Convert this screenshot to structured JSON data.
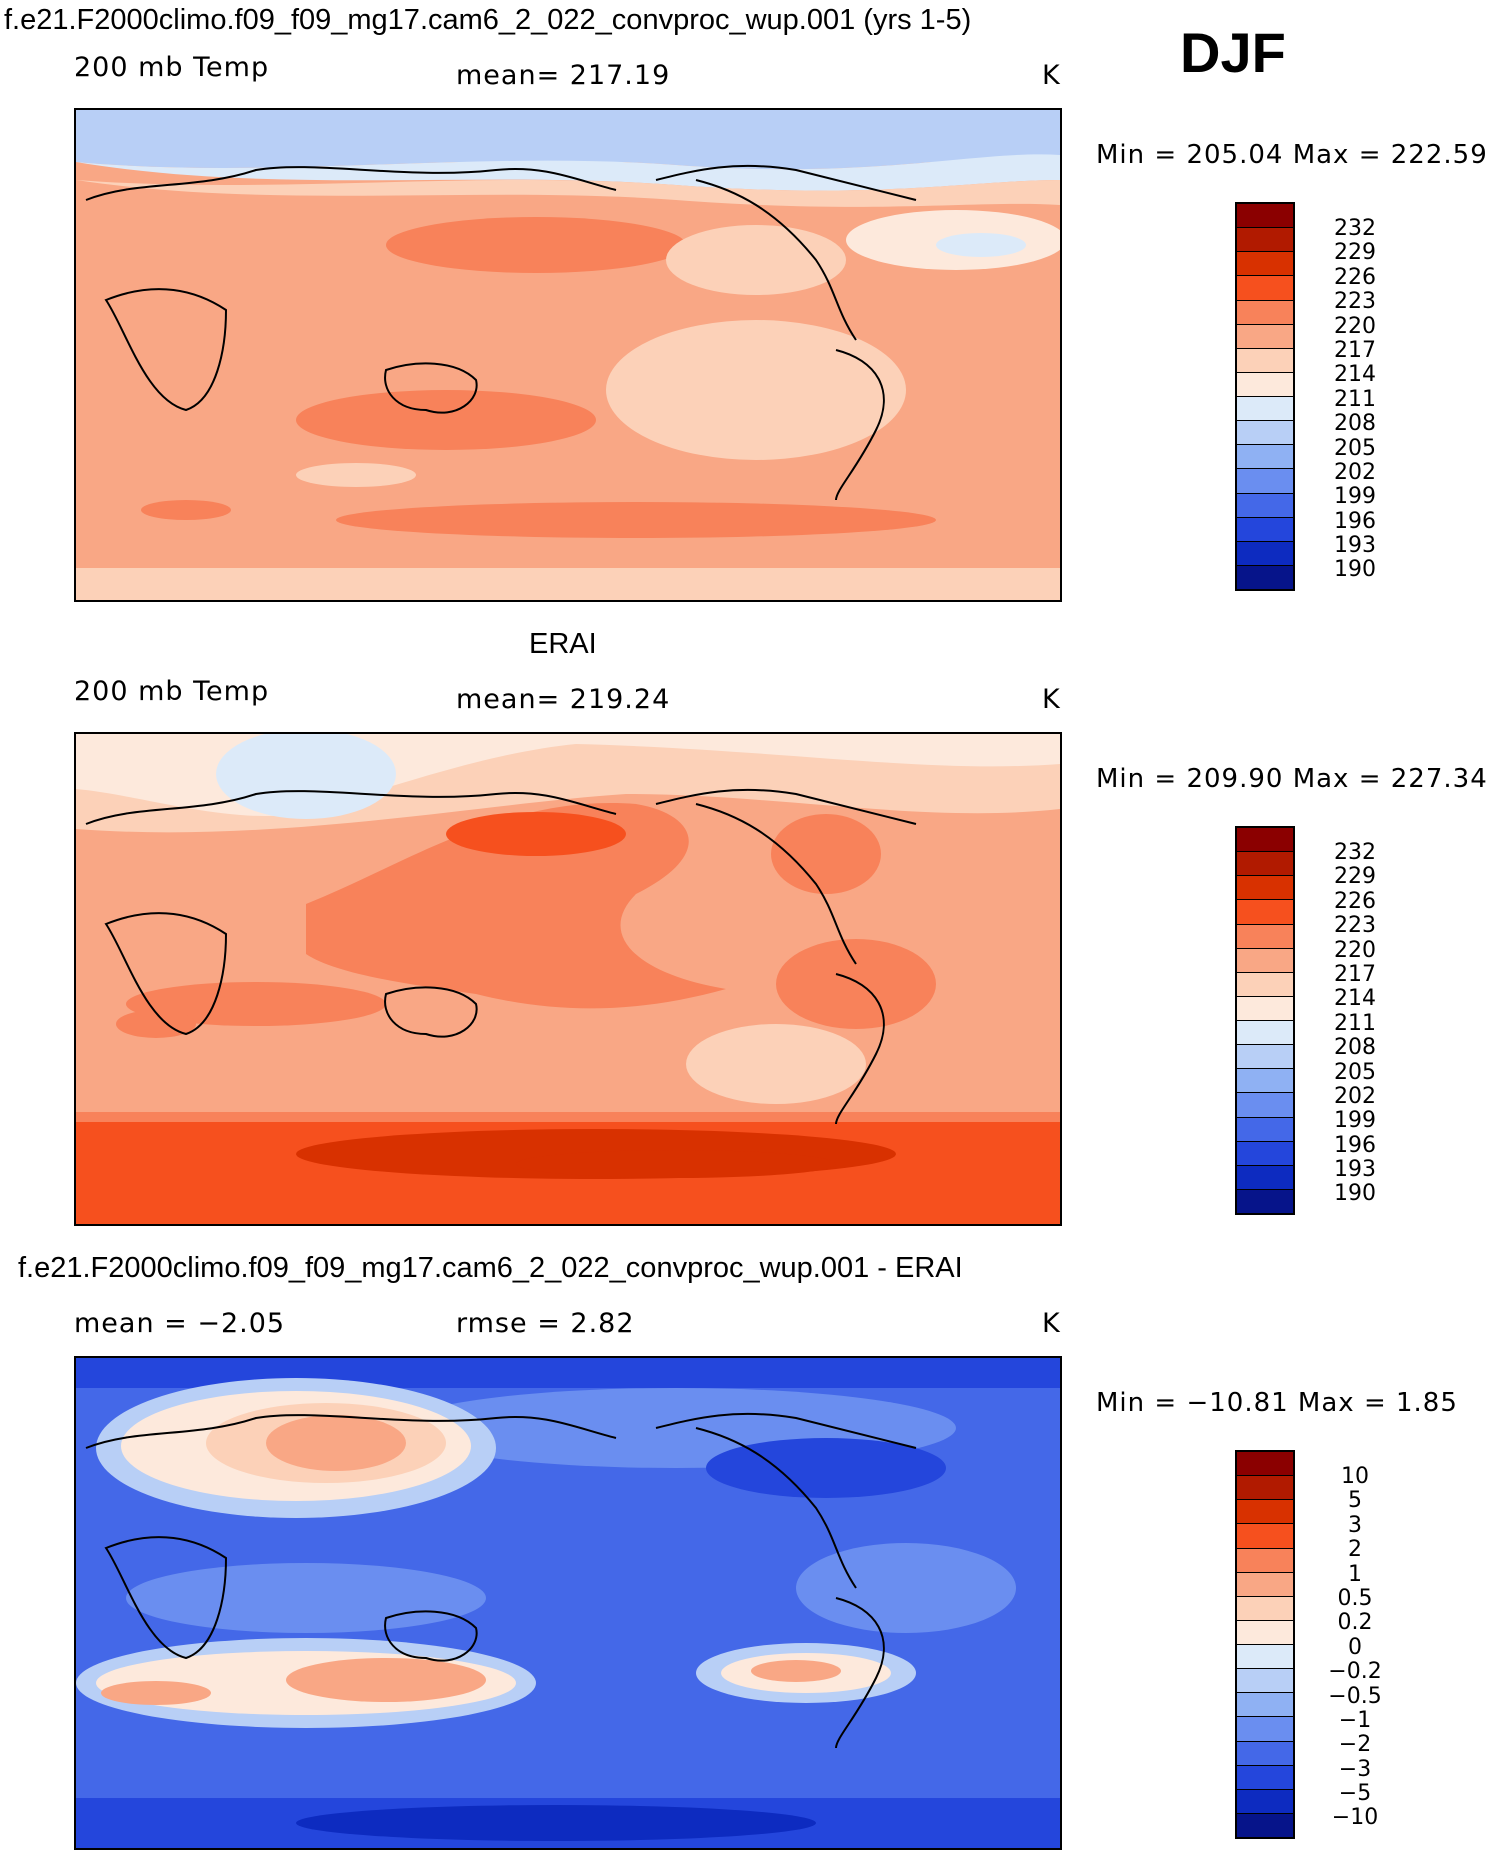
{
  "header": {
    "title": "f.e21.F2000climo.f09_f09_mg17.cam6_2_022_convproc_wup.001 (yrs 1-5)",
    "season": "DJF"
  },
  "panels": [
    {
      "id": "model",
      "caption": "",
      "left_label": "200 mb Temp",
      "center_label": "mean= 217.19",
      "units": "K",
      "minmax": "Min = 205.04 Max = 222.59"
    },
    {
      "id": "obs",
      "caption": "ERAI",
      "left_label": "200 mb Temp",
      "center_label": "mean= 219.24",
      "units": "K",
      "minmax": "Min = 209.90 Max = 227.34"
    },
    {
      "id": "diff",
      "caption": "f.e21.F2000climo.f09_f09_mg17.cam6_2_022_convproc_wup.001 - ERAI",
      "left_label": "mean =   −2.05",
      "center_label": "rmse =    2.82",
      "units": "K",
      "minmax": "Min = −10.81 Max =     1.85"
    }
  ],
  "colorbars": {
    "temp": {
      "labels": [
        "232",
        "229",
        "226",
        "223",
        "220",
        "217",
        "214",
        "211",
        "208",
        "205",
        "202",
        "199",
        "196",
        "193",
        "190"
      ],
      "colors": [
        "#8b0000",
        "#b11a00",
        "#d83100",
        "#f6501e",
        "#f8825a",
        "#f9a785",
        "#fcd1b8",
        "#fde9dc",
        "#dceaf9",
        "#b8cff6",
        "#8fb1f3",
        "#6a8ef0",
        "#4468e8",
        "#2446dc",
        "#0d2bc0",
        "#06148a"
      ]
    },
    "diff": {
      "labels": [
        "10",
        "5",
        "3",
        "2",
        "1",
        "0.5",
        "0.2",
        "0",
        "−0.2",
        "−0.5",
        "−1",
        "−2",
        "−3",
        "−5",
        "−10"
      ],
      "colors": [
        "#8b0000",
        "#b11a00",
        "#d83100",
        "#f6501e",
        "#f8825a",
        "#f9a785",
        "#fcd1b8",
        "#fde9dc",
        "#dceaf9",
        "#b8cff6",
        "#8fb1f3",
        "#6a8ef0",
        "#4468e8",
        "#2446dc",
        "#0d2bc0",
        "#06148a"
      ]
    }
  },
  "chart_data": [
    {
      "type": "heatmap",
      "title": "200 mb Temp",
      "variable": "200 mb Temp",
      "units": "K",
      "mean": 217.19,
      "min": 205.04,
      "max": 222.59,
      "levels": [
        190,
        193,
        196,
        199,
        202,
        205,
        208,
        211,
        214,
        217,
        220,
        223,
        226,
        229,
        232
      ]
    },
    {
      "type": "heatmap",
      "title": "ERAI 200 mb Temp",
      "variable": "200 mb Temp",
      "units": "K",
      "mean": 219.24,
      "min": 209.9,
      "max": 227.34,
      "levels": [
        190,
        193,
        196,
        199,
        202,
        205,
        208,
        211,
        214,
        217,
        220,
        223,
        226,
        229,
        232
      ]
    },
    {
      "type": "heatmap",
      "title": "Model - ERAI",
      "units": "K",
      "mean": -2.05,
      "rmse": 2.82,
      "min": -10.81,
      "max": 1.85,
      "levels": [
        -10,
        -5,
        -3,
        -2,
        -1,
        -0.5,
        -0.2,
        0,
        0.2,
        0.5,
        1,
        2,
        3,
        5,
        10
      ]
    }
  ]
}
